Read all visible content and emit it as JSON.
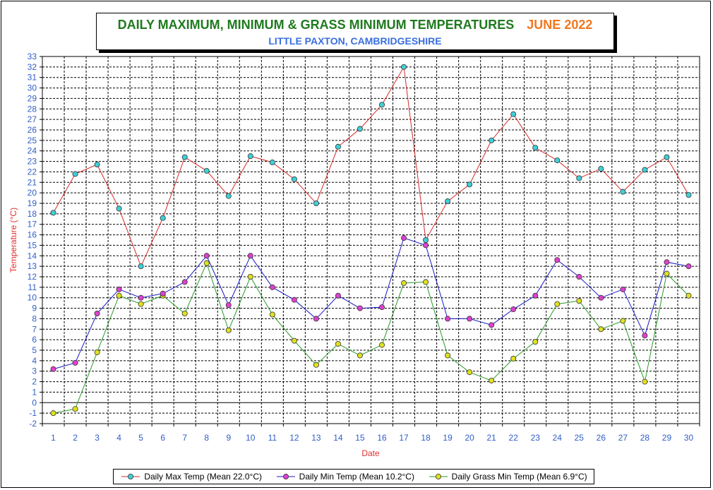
{
  "title": "DAILY MAXIMUM, MINIMUM & GRASS MINIMUM TEMPERATURES",
  "month": "JUNE 2022",
  "subtitle": "LITTLE PAXTON, CAMBRIDGESHIRE",
  "colors": {
    "title": "#1f7a1f",
    "month": "#f07820",
    "subtitle": "#3a6fe0",
    "tick_labels": "#2f5ec8",
    "axis_titles": "#e03030"
  },
  "chart_data": {
    "type": "line",
    "xlabel": "Date",
    "ylabel": "Temperature (°C)",
    "x": [
      1,
      2,
      3,
      4,
      5,
      6,
      7,
      8,
      9,
      10,
      11,
      12,
      13,
      14,
      15,
      16,
      17,
      18,
      19,
      20,
      21,
      22,
      23,
      24,
      25,
      26,
      27,
      28,
      29,
      30
    ],
    "ylim": [
      -2,
      33
    ],
    "ytick_step": 1,
    "grid": true,
    "legend_position": "bottom",
    "series": [
      {
        "name": "Daily Max Temp (Mean 22.0°C)",
        "line_color": "#d42a2a",
        "marker_color": "#3fd0d8",
        "values": [
          18.1,
          21.8,
          22.7,
          18.5,
          13.0,
          17.6,
          23.4,
          22.1,
          19.7,
          23.5,
          22.9,
          21.3,
          19.0,
          24.4,
          26.1,
          28.4,
          32.0,
          15.5,
          19.2,
          20.8,
          25.0,
          27.5,
          24.3,
          23.1,
          21.4,
          22.3,
          20.1,
          22.2,
          23.4,
          19.8
        ]
      },
      {
        "name": "Daily Min Temp (Mean 10.2°C)",
        "line_color": "#1a1ac8",
        "marker_color": "#e040d0",
        "values": [
          3.2,
          3.8,
          8.5,
          10.8,
          10.0,
          10.4,
          11.5,
          14.0,
          9.3,
          14.0,
          11.0,
          9.8,
          8.0,
          10.2,
          9.0,
          9.1,
          15.7,
          15.0,
          8.0,
          8.0,
          7.4,
          8.9,
          10.2,
          13.6,
          12.0,
          10.0,
          10.8,
          6.4,
          13.4,
          13.0
        ]
      },
      {
        "name": "Daily Grass Min Temp (Mean 6.9°C)",
        "line_color": "#2a9a2a",
        "marker_color": "#e0e020",
        "values": [
          -1.0,
          -0.6,
          4.8,
          10.2,
          9.4,
          10.2,
          8.5,
          13.3,
          6.9,
          12.0,
          8.4,
          5.9,
          3.6,
          5.6,
          4.5,
          5.5,
          11.4,
          11.5,
          4.5,
          2.9,
          2.1,
          4.2,
          5.8,
          9.4,
          9.7,
          7.0,
          7.8,
          2.0,
          12.3,
          10.2
        ]
      }
    ]
  }
}
